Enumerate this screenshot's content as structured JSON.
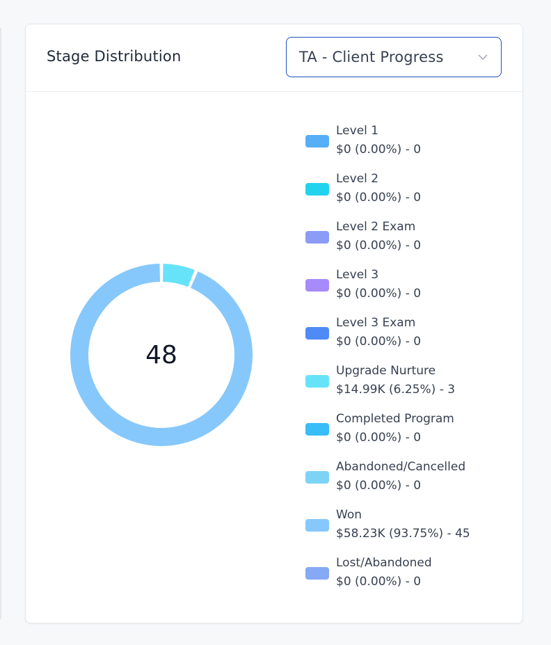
{
  "card": {
    "title": "Stage Distribution",
    "pipeline_select": {
      "value": "TA - Client Progress",
      "icon": "chevron-down-icon"
    }
  },
  "chart_data": {
    "type": "pie",
    "style": "donut",
    "center_label": "48",
    "legend_placement": "right",
    "series": [
      {
        "name": "Level 1",
        "label": "$0 (0.00%) - 0",
        "amount": 0,
        "percent": 0,
        "count": 0,
        "color": "#55aef6"
      },
      {
        "name": "Level 2",
        "label": "$0 (0.00%) - 0",
        "amount": 0,
        "percent": 0,
        "count": 0,
        "color": "#22d3ee"
      },
      {
        "name": "Level 2 Exam",
        "label": "$0 (0.00%) - 0",
        "amount": 0,
        "percent": 0,
        "count": 0,
        "color": "#8b9cf6"
      },
      {
        "name": "Level 3",
        "label": "$0 (0.00%) - 0",
        "amount": 0,
        "percent": 0,
        "count": 0,
        "color": "#a78bfa"
      },
      {
        "name": "Level 3 Exam",
        "label": "$0 (0.00%) - 0",
        "amount": 0,
        "percent": 0,
        "count": 0,
        "color": "#4f8bf7"
      },
      {
        "name": "Upgrade Nurture",
        "label": "$14.99K (6.25%) - 3",
        "amount": 14990,
        "percent": 6.25,
        "count": 3,
        "color": "#67e3f9"
      },
      {
        "name": "Completed Program",
        "label": "$0 (0.00%) - 0",
        "amount": 0,
        "percent": 0,
        "count": 0,
        "color": "#38bdf8"
      },
      {
        "name": "Abandoned/Cancelled",
        "label": "$0 (0.00%) - 0",
        "amount": 0,
        "percent": 0,
        "count": 0,
        "color": "#7dd3f5"
      },
      {
        "name": "Won",
        "label": "$58.23K (93.75%) - 45",
        "amount": 58230,
        "percent": 93.75,
        "count": 45,
        "color": "#86c8fb"
      },
      {
        "name": "Lost/Abandoned",
        "label": "$0 (0.00%) - 0",
        "amount": 0,
        "percent": 0,
        "count": 0,
        "color": "#86a9f6"
      }
    ]
  }
}
